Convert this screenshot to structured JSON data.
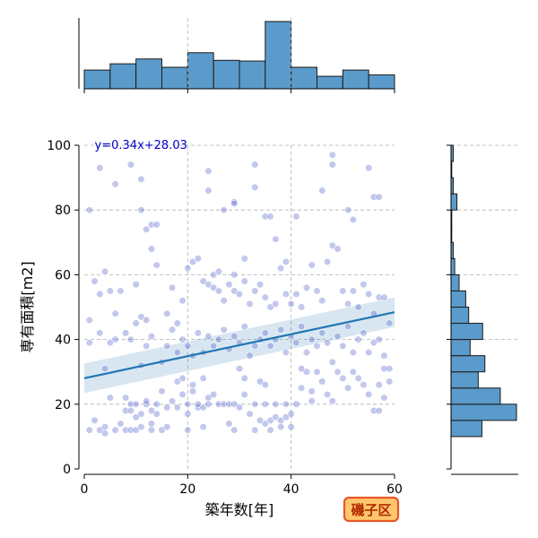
{
  "chart_data": {
    "type": "scatter",
    "xlabel": "築年数[年]",
    "ylabel": "専有面積[m2]",
    "xlim": [
      0,
      60
    ],
    "ylim": [
      0,
      100
    ],
    "xticks": [
      0,
      20,
      40,
      60
    ],
    "yticks": [
      0,
      20,
      40,
      60,
      80,
      100
    ],
    "grid": true,
    "regression": {
      "label": "y=0.34x+28.03",
      "slope": 0.34,
      "intercept": 28.03,
      "ci_band": 3.5,
      "color": "#1f77b4"
    },
    "point_color": "#4055c8",
    "hist_color": "#5a9bcb",
    "badge": {
      "label": "磯子区",
      "bg": "#ffc66d",
      "border": "#e8562a",
      "text_color": "#b02a00"
    },
    "top_hist": {
      "bin_edges": [
        0,
        5,
        10,
        15,
        20,
        25,
        30,
        35,
        40,
        45,
        50,
        55,
        60
      ],
      "counts": [
        27,
        36,
        43,
        31,
        52,
        41,
        40,
        97,
        31,
        18,
        27,
        20
      ]
    },
    "right_hist": {
      "bin_edges": [
        0,
        5,
        10,
        15,
        20,
        25,
        30,
        35,
        40,
        45,
        50,
        55,
        60,
        65,
        70,
        75,
        80,
        85,
        90,
        95,
        100
      ],
      "counts": [
        0,
        0,
        42,
        89,
        67,
        37,
        46,
        26,
        43,
        24,
        20,
        11,
        5,
        3,
        1,
        1,
        8,
        3,
        1,
        3
      ]
    },
    "points": [
      [
        1,
        80
      ],
      [
        3,
        93
      ],
      [
        4,
        61
      ],
      [
        6,
        88
      ],
      [
        9,
        94
      ],
      [
        11,
        89.5
      ],
      [
        11,
        80
      ],
      [
        12,
        74
      ],
      [
        13,
        75.5
      ],
      [
        14,
        75.5
      ],
      [
        24,
        92
      ],
      [
        24,
        86
      ],
      [
        27,
        80
      ],
      [
        29,
        82.5
      ],
      [
        29,
        82
      ],
      [
        33,
        94
      ],
      [
        33,
        87
      ],
      [
        35,
        78
      ],
      [
        36,
        78
      ],
      [
        37,
        71
      ],
      [
        39,
        64
      ],
      [
        41,
        78
      ],
      [
        46,
        86
      ],
      [
        48,
        97
      ],
      [
        48,
        94
      ],
      [
        51,
        80
      ],
      [
        52,
        77
      ],
      [
        55,
        93
      ],
      [
        56,
        84
      ],
      [
        57,
        84
      ],
      [
        1,
        46
      ],
      [
        2,
        58
      ],
      [
        3,
        54
      ],
      [
        5,
        55
      ],
      [
        6,
        48
      ],
      [
        7,
        55
      ],
      [
        10,
        57
      ],
      [
        11,
        47
      ],
      [
        12,
        46
      ],
      [
        13,
        68
      ],
      [
        14,
        63
      ],
      [
        16,
        48
      ],
      [
        17,
        56
      ],
      [
        18,
        45
      ],
      [
        19,
        52
      ],
      [
        20,
        62
      ],
      [
        21,
        64
      ],
      [
        22,
        65
      ],
      [
        23,
        58
      ],
      [
        24,
        57
      ],
      [
        25,
        60
      ],
      [
        25,
        56
      ],
      [
        26,
        61
      ],
      [
        26,
        55
      ],
      [
        27,
        52
      ],
      [
        28,
        57
      ],
      [
        29,
        60
      ],
      [
        29,
        55
      ],
      [
        30,
        54
      ],
      [
        31,
        58
      ],
      [
        31,
        65
      ],
      [
        32,
        51
      ],
      [
        33,
        55
      ],
      [
        34,
        57
      ],
      [
        35,
        53
      ],
      [
        36,
        50
      ],
      [
        37,
        51
      ],
      [
        38,
        62
      ],
      [
        39,
        54
      ],
      [
        40,
        51
      ],
      [
        41,
        54
      ],
      [
        42,
        50
      ],
      [
        43,
        56
      ],
      [
        44,
        63
      ],
      [
        45,
        55
      ],
      [
        46,
        52
      ],
      [
        47,
        64
      ],
      [
        48,
        69
      ],
      [
        49,
        68
      ],
      [
        50,
        55
      ],
      [
        51,
        51
      ],
      [
        52,
        55
      ],
      [
        53,
        50
      ],
      [
        54,
        57
      ],
      [
        55,
        54
      ],
      [
        56,
        48
      ],
      [
        57,
        53
      ],
      [
        58,
        53
      ],
      [
        59,
        45
      ],
      [
        1,
        39
      ],
      [
        3,
        42
      ],
      [
        4,
        31
      ],
      [
        5,
        39
      ],
      [
        6,
        40
      ],
      [
        8,
        42
      ],
      [
        9,
        40
      ],
      [
        10,
        45
      ],
      [
        11,
        32
      ],
      [
        12,
        38
      ],
      [
        13,
        41
      ],
      [
        15,
        33
      ],
      [
        16,
        38
      ],
      [
        17,
        43
      ],
      [
        18,
        36
      ],
      [
        19,
        40
      ],
      [
        20,
        38
      ],
      [
        21,
        35
      ],
      [
        22,
        42
      ],
      [
        23,
        36
      ],
      [
        24,
        41
      ],
      [
        25,
        38
      ],
      [
        26,
        40
      ],
      [
        27,
        43
      ],
      [
        28,
        37
      ],
      [
        29,
        41
      ],
      [
        30,
        39
      ],
      [
        31,
        44
      ],
      [
        32,
        35
      ],
      [
        33,
        38
      ],
      [
        34,
        40
      ],
      [
        35,
        42
      ],
      [
        36,
        38
      ],
      [
        37,
        40
      ],
      [
        38,
        43
      ],
      [
        39,
        36
      ],
      [
        40,
        41
      ],
      [
        41,
        39
      ],
      [
        42,
        44
      ],
      [
        43,
        36
      ],
      [
        44,
        40
      ],
      [
        45,
        38
      ],
      [
        46,
        42
      ],
      [
        47,
        39
      ],
      [
        48,
        33
      ],
      [
        49,
        41
      ],
      [
        50,
        38
      ],
      [
        51,
        44
      ],
      [
        52,
        36
      ],
      [
        53,
        40
      ],
      [
        54,
        42
      ],
      [
        55,
        36
      ],
      [
        56,
        39
      ],
      [
        57,
        40
      ],
      [
        58,
        35
      ],
      [
        59,
        31
      ],
      [
        2,
        15
      ],
      [
        3,
        12
      ],
      [
        4,
        13
      ],
      [
        5,
        22
      ],
      [
        6,
        12
      ],
      [
        7,
        14
      ],
      [
        8,
        12
      ],
      [
        8,
        18
      ],
      [
        8,
        22
      ],
      [
        9,
        12
      ],
      [
        9,
        18
      ],
      [
        9,
        20
      ],
      [
        10,
        12
      ],
      [
        10,
        16
      ],
      [
        10,
        20
      ],
      [
        11,
        13
      ],
      [
        11,
        17
      ],
      [
        12,
        20
      ],
      [
        12,
        21
      ],
      [
        13,
        14
      ],
      [
        13,
        18
      ],
      [
        14,
        17
      ],
      [
        14,
        20
      ],
      [
        15,
        24
      ],
      [
        15,
        12
      ],
      [
        16,
        19
      ],
      [
        17,
        21
      ],
      [
        18,
        27
      ],
      [
        18,
        19
      ],
      [
        19,
        23
      ],
      [
        19,
        28
      ],
      [
        20,
        20
      ],
      [
        20,
        17
      ],
      [
        21,
        24
      ],
      [
        21,
        26
      ],
      [
        22,
        19
      ],
      [
        22,
        20
      ],
      [
        23,
        28
      ],
      [
        23,
        19
      ],
      [
        24,
        22
      ],
      [
        24,
        20
      ],
      [
        25,
        23
      ],
      [
        26,
        20
      ],
      [
        27,
        20
      ],
      [
        28,
        20
      ],
      [
        29,
        20
      ],
      [
        30,
        31
      ],
      [
        30,
        19
      ],
      [
        31,
        28
      ],
      [
        32,
        17
      ],
      [
        33,
        20
      ],
      [
        33,
        12
      ],
      [
        34,
        15
      ],
      [
        34,
        27
      ],
      [
        35,
        20
      ],
      [
        35,
        14
      ],
      [
        36,
        15
      ],
      [
        36,
        12
      ],
      [
        37,
        16
      ],
      [
        37,
        20
      ],
      [
        38,
        15
      ],
      [
        38,
        13
      ],
      [
        39,
        16
      ],
      [
        39,
        20
      ],
      [
        40,
        17
      ],
      [
        40,
        13
      ],
      [
        41,
        20
      ],
      [
        42,
        25
      ],
      [
        43,
        30
      ],
      [
        44,
        21
      ],
      [
        45,
        30
      ],
      [
        46,
        27
      ],
      [
        47,
        23
      ],
      [
        48,
        21
      ],
      [
        49,
        30
      ],
      [
        50,
        28
      ],
      [
        51,
        25
      ],
      [
        52,
        30
      ],
      [
        53,
        28
      ],
      [
        54,
        26
      ],
      [
        55,
        23
      ],
      [
        56,
        18
      ],
      [
        57,
        18
      ],
      [
        57,
        26
      ],
      [
        58,
        22
      ],
      [
        58,
        31
      ],
      [
        59,
        27
      ],
      [
        1,
        12
      ],
      [
        4,
        11
      ],
      [
        13,
        12
      ],
      [
        16,
        13
      ],
      [
        20,
        12
      ],
      [
        23,
        13
      ],
      [
        28,
        14
      ],
      [
        29,
        12
      ],
      [
        31,
        23
      ],
      [
        35,
        26
      ],
      [
        44,
        24
      ],
      [
        42,
        31
      ]
    ]
  }
}
